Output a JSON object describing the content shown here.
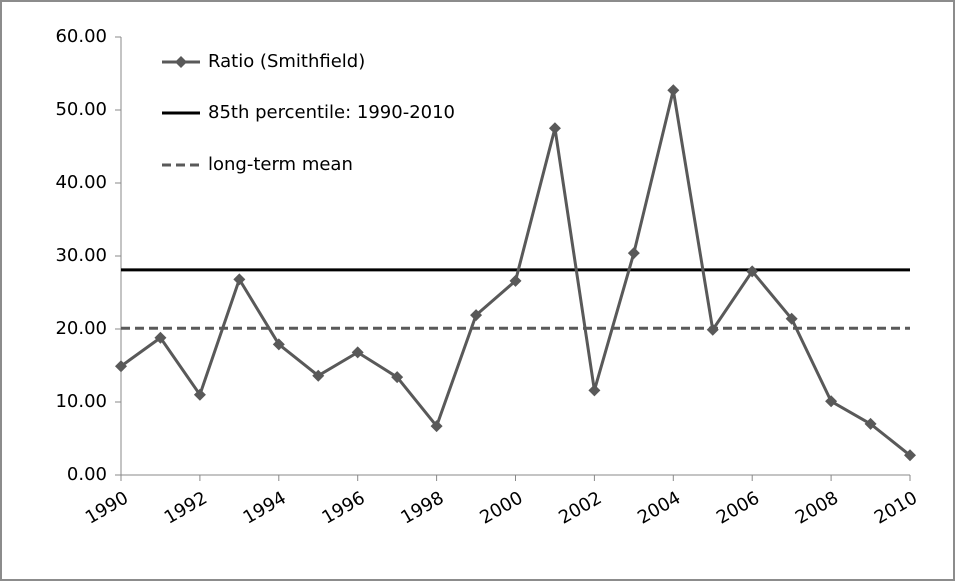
{
  "chart_data": {
    "type": "line",
    "x": [
      1990,
      1991,
      1992,
      1993,
      1994,
      1995,
      1996,
      1997,
      1998,
      1999,
      2000,
      2001,
      2002,
      2003,
      2004,
      2005,
      2006,
      2007,
      2008,
      2009,
      2010
    ],
    "series": [
      {
        "name": "Ratio (Smithfield)",
        "color": "#595959",
        "marker": "diamond",
        "values": [
          14.9,
          18.8,
          11.0,
          26.8,
          17.9,
          13.6,
          16.8,
          13.4,
          6.7,
          21.9,
          26.6,
          47.5,
          11.6,
          30.4,
          52.7,
          19.9,
          27.9,
          21.4,
          10.1,
          7.0,
          2.7
        ]
      }
    ],
    "reference_lines": [
      {
        "name": "85th percentile: 1990-2010",
        "value": 28.1,
        "color": "#000000",
        "style": "solid"
      },
      {
        "name": "long-term mean",
        "value": 20.1,
        "color": "#595959",
        "style": "dashed"
      }
    ],
    "xlim": [
      1990,
      2010
    ],
    "xticks": [
      1990,
      1992,
      1994,
      1996,
      1998,
      2000,
      2002,
      2004,
      2006,
      2008,
      2010
    ],
    "ylim": [
      0,
      60
    ],
    "yticks": [
      {
        "value": 0,
        "label": "0.00"
      },
      {
        "value": 10,
        "label": "10.00"
      },
      {
        "value": 20,
        "label": "20.00"
      },
      {
        "value": 30,
        "label": "30.00"
      },
      {
        "value": 40,
        "label": "40.00"
      },
      {
        "value": 50,
        "label": "50.00"
      },
      {
        "value": 60,
        "label": "60.00"
      }
    ],
    "grid": false,
    "legend": "top-left"
  }
}
